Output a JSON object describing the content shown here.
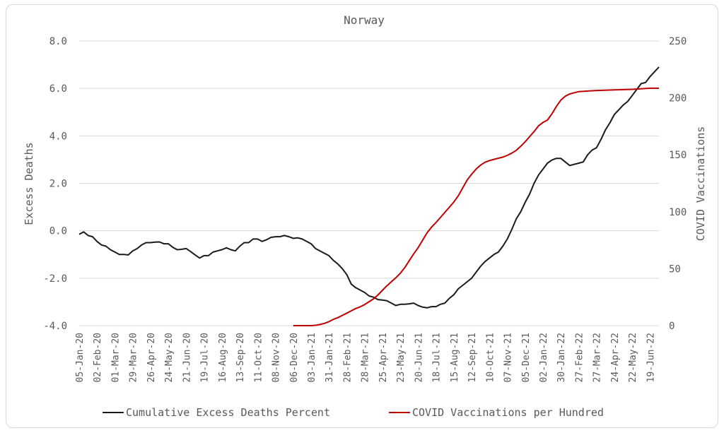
{
  "chart_data": {
    "type": "line",
    "title": "Norway",
    "ylabel": "Excess Deaths",
    "y2label": "COVID Vaccinations",
    "ylim": [
      -4,
      8
    ],
    "y2lim": [
      0,
      250
    ],
    "yticks": [
      "8.0",
      "6.0",
      "4.0",
      "2.0",
      "0.0",
      "-2.0",
      "-4.0"
    ],
    "y2ticks": [
      "250",
      "200",
      "150",
      "100",
      "50",
      "0"
    ],
    "grid": true,
    "legend": "bottom",
    "categories": [
      "05-Jan-20",
      "02-Feb-20",
      "01-Mar-20",
      "29-Mar-20",
      "26-Apr-20",
      "24-May-20",
      "21-Jun-20",
      "19-Jul-20",
      "16-Aug-20",
      "13-Sep-20",
      "11-Oct-20",
      "08-Nov-20",
      "06-Dec-20",
      "03-Jan-21",
      "31-Jan-21",
      "28-Feb-21",
      "28-Mar-21",
      "25-Apr-21",
      "23-May-21",
      "20-Jun-21",
      "18-Jul-21",
      "15-Aug-21",
      "12-Sep-21",
      "10-Oct-21",
      "07-Nov-21",
      "05-Dec-21",
      "02-Jan-22",
      "30-Jan-22",
      "27-Feb-22",
      "27-Mar-22",
      "24-Apr-22",
      "22-May-22",
      "19-Jun-22"
    ],
    "series": [
      {
        "name": "Cumulative Excess Deaths Percent",
        "axis": "left",
        "color": "#1a1a1a",
        "points": [
          [
            0,
            -0.15
          ],
          [
            0.25,
            -0.05
          ],
          [
            0.5,
            -0.2
          ],
          [
            0.75,
            -0.25
          ],
          [
            1,
            -0.45
          ],
          [
            1.25,
            -0.6
          ],
          [
            1.5,
            -0.65
          ],
          [
            1.75,
            -0.8
          ],
          [
            2,
            -0.9
          ],
          [
            2.25,
            -1.0
          ],
          [
            2.5,
            -1.0
          ],
          [
            2.75,
            -1.02
          ],
          [
            3,
            -0.85
          ],
          [
            3.25,
            -0.75
          ],
          [
            3.5,
            -0.6
          ],
          [
            3.75,
            -0.5
          ],
          [
            4,
            -0.5
          ],
          [
            4.25,
            -0.48
          ],
          [
            4.5,
            -0.47
          ],
          [
            4.75,
            -0.55
          ],
          [
            5,
            -0.55
          ],
          [
            5.25,
            -0.7
          ],
          [
            5.5,
            -0.8
          ],
          [
            5.75,
            -0.78
          ],
          [
            6,
            -0.75
          ],
          [
            6.25,
            -0.88
          ],
          [
            6.5,
            -1.02
          ],
          [
            6.75,
            -1.15
          ],
          [
            7,
            -1.05
          ],
          [
            7.25,
            -1.05
          ],
          [
            7.5,
            -0.9
          ],
          [
            7.75,
            -0.85
          ],
          [
            8,
            -0.8
          ],
          [
            8.25,
            -0.72
          ],
          [
            8.5,
            -0.8
          ],
          [
            8.75,
            -0.85
          ],
          [
            9,
            -0.65
          ],
          [
            9.25,
            -0.5
          ],
          [
            9.5,
            -0.5
          ],
          [
            9.75,
            -0.35
          ],
          [
            10,
            -0.35
          ],
          [
            10.25,
            -0.45
          ],
          [
            10.5,
            -0.38
          ],
          [
            10.75,
            -0.28
          ],
          [
            11,
            -0.25
          ],
          [
            11.25,
            -0.25
          ],
          [
            11.5,
            -0.2
          ],
          [
            11.75,
            -0.25
          ],
          [
            12,
            -0.32
          ],
          [
            12.25,
            -0.3
          ],
          [
            12.5,
            -0.35
          ],
          [
            12.75,
            -0.45
          ],
          [
            13,
            -0.55
          ],
          [
            13.25,
            -0.75
          ],
          [
            13.5,
            -0.85
          ],
          [
            13.75,
            -0.95
          ],
          [
            14,
            -1.05
          ],
          [
            14.25,
            -1.25
          ],
          [
            14.5,
            -1.4
          ],
          [
            14.75,
            -1.6
          ],
          [
            15,
            -1.85
          ],
          [
            15.25,
            -2.25
          ],
          [
            15.5,
            -2.4
          ],
          [
            15.75,
            -2.5
          ],
          [
            16,
            -2.6
          ],
          [
            16.25,
            -2.75
          ],
          [
            16.5,
            -2.8
          ],
          [
            16.75,
            -2.9
          ],
          [
            17,
            -2.92
          ],
          [
            17.25,
            -2.95
          ],
          [
            17.5,
            -3.05
          ],
          [
            17.75,
            -3.15
          ],
          [
            18,
            -3.1
          ],
          [
            18.25,
            -3.1
          ],
          [
            18.5,
            -3.08
          ],
          [
            18.75,
            -3.05
          ],
          [
            19,
            -3.15
          ],
          [
            19.25,
            -3.22
          ],
          [
            19.5,
            -3.25
          ],
          [
            19.75,
            -3.2
          ],
          [
            20,
            -3.2
          ],
          [
            20.25,
            -3.1
          ],
          [
            20.5,
            -3.05
          ],
          [
            20.75,
            -2.85
          ],
          [
            21,
            -2.7
          ],
          [
            21.25,
            -2.45
          ],
          [
            21.5,
            -2.3
          ],
          [
            21.75,
            -2.15
          ],
          [
            22,
            -2.0
          ],
          [
            22.25,
            -1.75
          ],
          [
            22.5,
            -1.5
          ],
          [
            22.75,
            -1.3
          ],
          [
            23,
            -1.15
          ],
          [
            23.25,
            -1.0
          ],
          [
            23.5,
            -0.9
          ],
          [
            23.75,
            -0.65
          ],
          [
            24,
            -0.35
          ],
          [
            24.25,
            0.05
          ],
          [
            24.5,
            0.5
          ],
          [
            24.75,
            0.8
          ],
          [
            25,
            1.2
          ],
          [
            25.25,
            1.55
          ],
          [
            25.5,
            2.0
          ],
          [
            25.75,
            2.35
          ],
          [
            26,
            2.6
          ],
          [
            26.25,
            2.85
          ],
          [
            26.5,
            2.98
          ],
          [
            26.75,
            3.05
          ],
          [
            27,
            3.05
          ],
          [
            27.25,
            2.9
          ],
          [
            27.5,
            2.75
          ],
          [
            27.75,
            2.8
          ],
          [
            28,
            2.85
          ],
          [
            28.25,
            2.9
          ],
          [
            28.5,
            3.2
          ],
          [
            28.75,
            3.4
          ],
          [
            29,
            3.5
          ],
          [
            29.25,
            3.85
          ],
          [
            29.5,
            4.25
          ],
          [
            29.75,
            4.55
          ],
          [
            30,
            4.9
          ],
          [
            30.25,
            5.1
          ],
          [
            30.5,
            5.3
          ],
          [
            30.75,
            5.45
          ],
          [
            31,
            5.7
          ],
          [
            31.25,
            5.95
          ],
          [
            31.5,
            6.2
          ],
          [
            31.75,
            6.25
          ],
          [
            32,
            6.5
          ],
          [
            32.25,
            6.7
          ],
          [
            32.5,
            6.9
          ]
        ]
      },
      {
        "name": "COVID Vaccinations per Hundred",
        "axis": "right",
        "color": "#c00000",
        "points": [
          [
            12,
            0
          ],
          [
            12.5,
            0
          ],
          [
            13,
            0
          ],
          [
            13.25,
            0.3
          ],
          [
            13.5,
            1
          ],
          [
            13.75,
            2
          ],
          [
            14,
            3.5
          ],
          [
            14.25,
            5.5
          ],
          [
            14.5,
            7
          ],
          [
            14.75,
            9
          ],
          [
            15,
            11
          ],
          [
            15.25,
            13
          ],
          [
            15.5,
            15
          ],
          [
            15.75,
            16.5
          ],
          [
            16,
            18.5
          ],
          [
            16.25,
            21
          ],
          [
            16.5,
            23.5
          ],
          [
            16.75,
            27
          ],
          [
            17,
            31
          ],
          [
            17.25,
            35
          ],
          [
            17.5,
            38.5
          ],
          [
            17.75,
            42
          ],
          [
            18,
            46
          ],
          [
            18.25,
            51
          ],
          [
            18.5,
            57
          ],
          [
            18.75,
            63
          ],
          [
            19,
            68.5
          ],
          [
            19.25,
            75
          ],
          [
            19.5,
            81.5
          ],
          [
            19.75,
            86.5
          ],
          [
            20,
            90.5
          ],
          [
            20.25,
            95
          ],
          [
            20.5,
            99.5
          ],
          [
            20.75,
            104
          ],
          [
            21,
            108.5
          ],
          [
            21.25,
            114
          ],
          [
            21.5,
            121
          ],
          [
            21.75,
            128
          ],
          [
            22,
            133
          ],
          [
            22.25,
            137.5
          ],
          [
            22.5,
            141
          ],
          [
            22.75,
            143.5
          ],
          [
            23,
            145
          ],
          [
            23.25,
            146
          ],
          [
            23.5,
            147
          ],
          [
            23.75,
            148
          ],
          [
            24,
            149.5
          ],
          [
            24.25,
            151.5
          ],
          [
            24.5,
            154
          ],
          [
            24.75,
            157.5
          ],
          [
            25,
            161.5
          ],
          [
            25.25,
            166
          ],
          [
            25.5,
            170.5
          ],
          [
            25.75,
            175.5
          ],
          [
            26,
            178.5
          ],
          [
            26.25,
            180.5
          ],
          [
            26.5,
            186
          ],
          [
            26.75,
            192.5
          ],
          [
            27,
            198
          ],
          [
            27.25,
            201.5
          ],
          [
            27.5,
            203.5
          ],
          [
            27.75,
            204.5
          ],
          [
            28,
            205.5
          ],
          [
            28.5,
            206
          ],
          [
            29,
            206.5
          ],
          [
            30,
            207
          ],
          [
            31,
            207.5
          ],
          [
            32,
            208.5
          ],
          [
            32.5,
            208.5
          ]
        ]
      }
    ]
  }
}
